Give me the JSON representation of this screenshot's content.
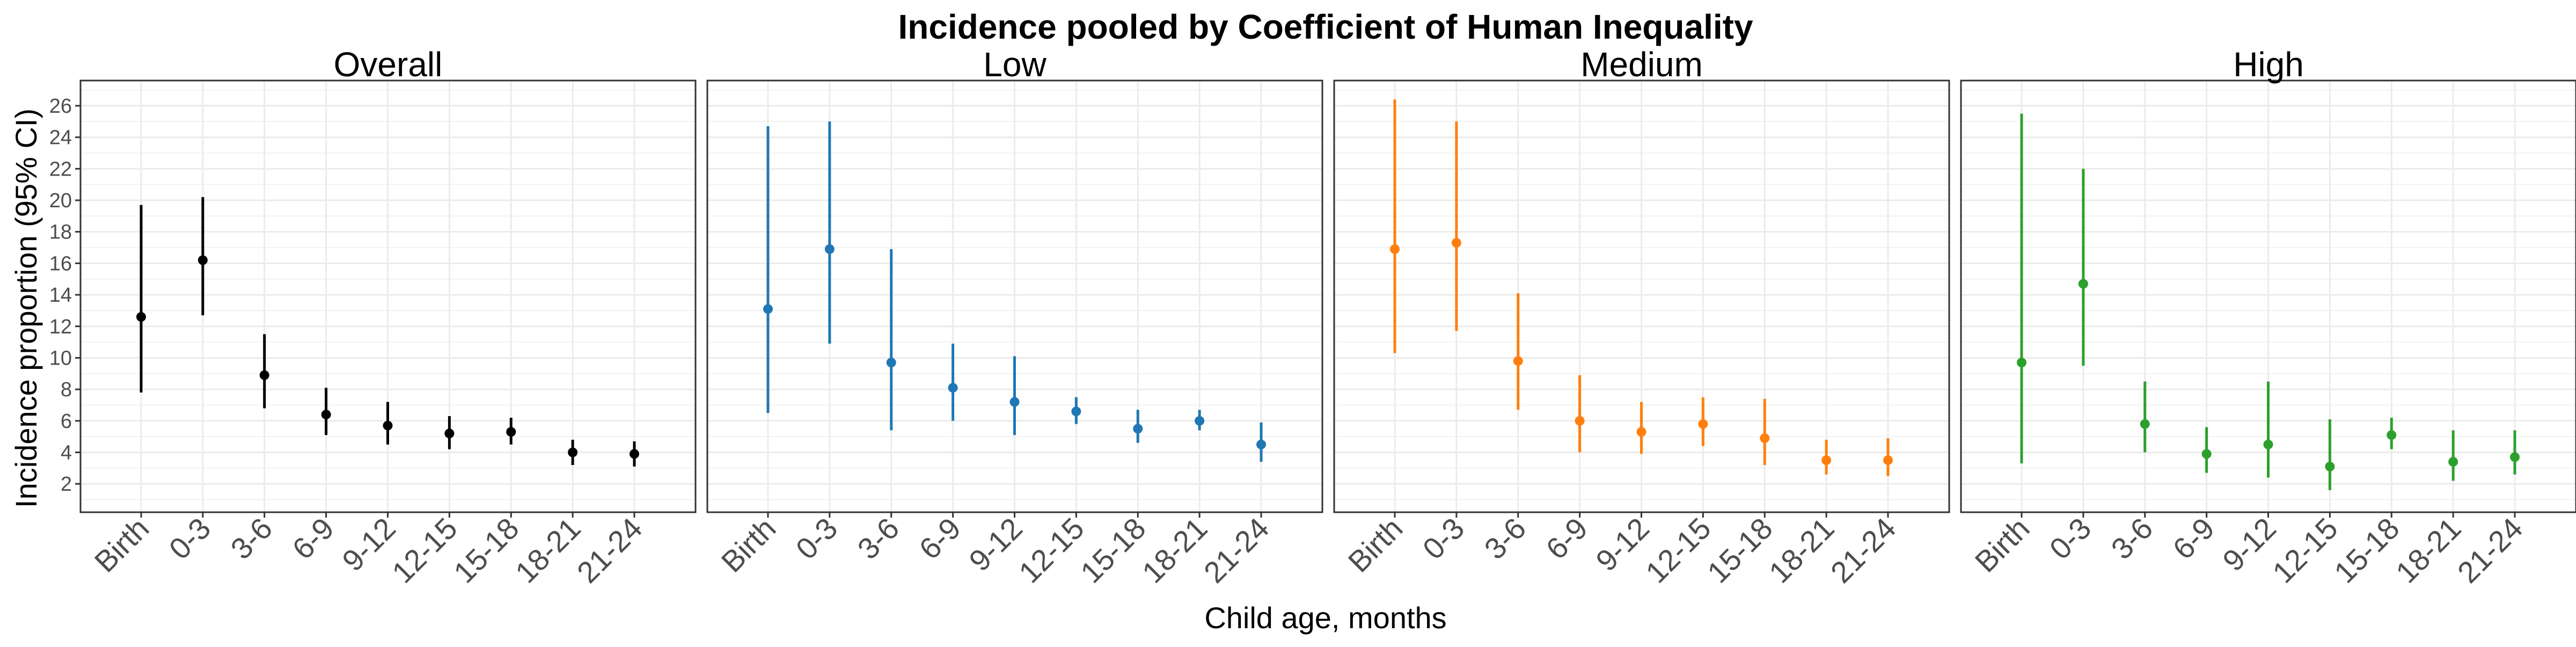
{
  "figure": {
    "title": "Incidence pooled by Coefficient of Human Inequality",
    "xlabel": "Child age, months",
    "ylabel": "Incidence proportion (95% CI)"
  },
  "chart_data": {
    "type": "scatter",
    "error_bars": true,
    "facets": [
      "Overall",
      "Low",
      "Medium",
      "High"
    ],
    "categories": [
      "Birth",
      "0-3",
      "3-6",
      "6-9",
      "9-12",
      "12-15",
      "15-18",
      "18-21",
      "21-24"
    ],
    "yticks": [
      2,
      4,
      6,
      8,
      10,
      12,
      14,
      16,
      18,
      20,
      22,
      24,
      26
    ],
    "ylim": [
      0.2,
      27.6
    ],
    "grid": true,
    "legend": "none",
    "series": [
      {
        "name": "Overall",
        "color": "#000000",
        "points": [
          {
            "x": "Birth",
            "y": 12.6,
            "lo": 7.8,
            "hi": 19.7
          },
          {
            "x": "0-3",
            "y": 16.2,
            "lo": 12.7,
            "hi": 20.2
          },
          {
            "x": "3-6",
            "y": 8.9,
            "lo": 6.8,
            "hi": 11.5
          },
          {
            "x": "6-9",
            "y": 6.4,
            "lo": 5.1,
            "hi": 8.1
          },
          {
            "x": "9-12",
            "y": 5.7,
            "lo": 4.5,
            "hi": 7.2
          },
          {
            "x": "12-15",
            "y": 5.2,
            "lo": 4.2,
            "hi": 6.3
          },
          {
            "x": "15-18",
            "y": 5.3,
            "lo": 4.5,
            "hi": 6.2
          },
          {
            "x": "18-21",
            "y": 4.0,
            "lo": 3.2,
            "hi": 4.8
          },
          {
            "x": "21-24",
            "y": 3.9,
            "lo": 3.1,
            "hi": 4.7
          }
        ]
      },
      {
        "name": "Low",
        "color": "#1f77b4",
        "points": [
          {
            "x": "Birth",
            "y": 13.1,
            "lo": 6.5,
            "hi": 24.7
          },
          {
            "x": "0-3",
            "y": 16.9,
            "lo": 10.9,
            "hi": 25.0
          },
          {
            "x": "3-6",
            "y": 9.7,
            "lo": 5.4,
            "hi": 16.9
          },
          {
            "x": "6-9",
            "y": 8.1,
            "lo": 6.0,
            "hi": 10.9
          },
          {
            "x": "9-12",
            "y": 7.2,
            "lo": 5.1,
            "hi": 10.1
          },
          {
            "x": "12-15",
            "y": 6.6,
            "lo": 5.8,
            "hi": 7.5
          },
          {
            "x": "15-18",
            "y": 5.5,
            "lo": 4.6,
            "hi": 6.7
          },
          {
            "x": "18-21",
            "y": 6.0,
            "lo": 5.4,
            "hi": 6.7
          },
          {
            "x": "21-24",
            "y": 4.5,
            "lo": 3.4,
            "hi": 5.9
          }
        ]
      },
      {
        "name": "Medium",
        "color": "#ff7f0e",
        "points": [
          {
            "x": "Birth",
            "y": 16.9,
            "lo": 10.3,
            "hi": 26.4
          },
          {
            "x": "0-3",
            "y": 17.3,
            "lo": 11.7,
            "hi": 25.0
          },
          {
            "x": "3-6",
            "y": 9.8,
            "lo": 6.7,
            "hi": 14.1
          },
          {
            "x": "6-9",
            "y": 6.0,
            "lo": 4.0,
            "hi": 8.9
          },
          {
            "x": "9-12",
            "y": 5.3,
            "lo": 3.9,
            "hi": 7.2
          },
          {
            "x": "12-15",
            "y": 5.8,
            "lo": 4.4,
            "hi": 7.5
          },
          {
            "x": "15-18",
            "y": 4.9,
            "lo": 3.2,
            "hi": 7.4
          },
          {
            "x": "18-21",
            "y": 3.5,
            "lo": 2.6,
            "hi": 4.8
          },
          {
            "x": "21-24",
            "y": 3.5,
            "lo": 2.5,
            "hi": 4.9
          }
        ]
      },
      {
        "name": "High",
        "color": "#2ca02c",
        "points": [
          {
            "x": "Birth",
            "y": 9.7,
            "lo": 3.3,
            "hi": 25.5
          },
          {
            "x": "0-3",
            "y": 14.7,
            "lo": 9.5,
            "hi": 22.0
          },
          {
            "x": "3-6",
            "y": 5.8,
            "lo": 4.0,
            "hi": 8.5
          },
          {
            "x": "6-9",
            "y": 3.9,
            "lo": 2.7,
            "hi": 5.6
          },
          {
            "x": "9-12",
            "y": 4.5,
            "lo": 2.4,
            "hi": 8.5
          },
          {
            "x": "12-15",
            "y": 3.1,
            "lo": 1.6,
            "hi": 6.1
          },
          {
            "x": "15-18",
            "y": 5.1,
            "lo": 4.2,
            "hi": 6.2
          },
          {
            "x": "18-21",
            "y": 3.4,
            "lo": 2.2,
            "hi": 5.4
          },
          {
            "x": "21-24",
            "y": 3.7,
            "lo": 2.6,
            "hi": 5.4
          }
        ]
      }
    ]
  }
}
